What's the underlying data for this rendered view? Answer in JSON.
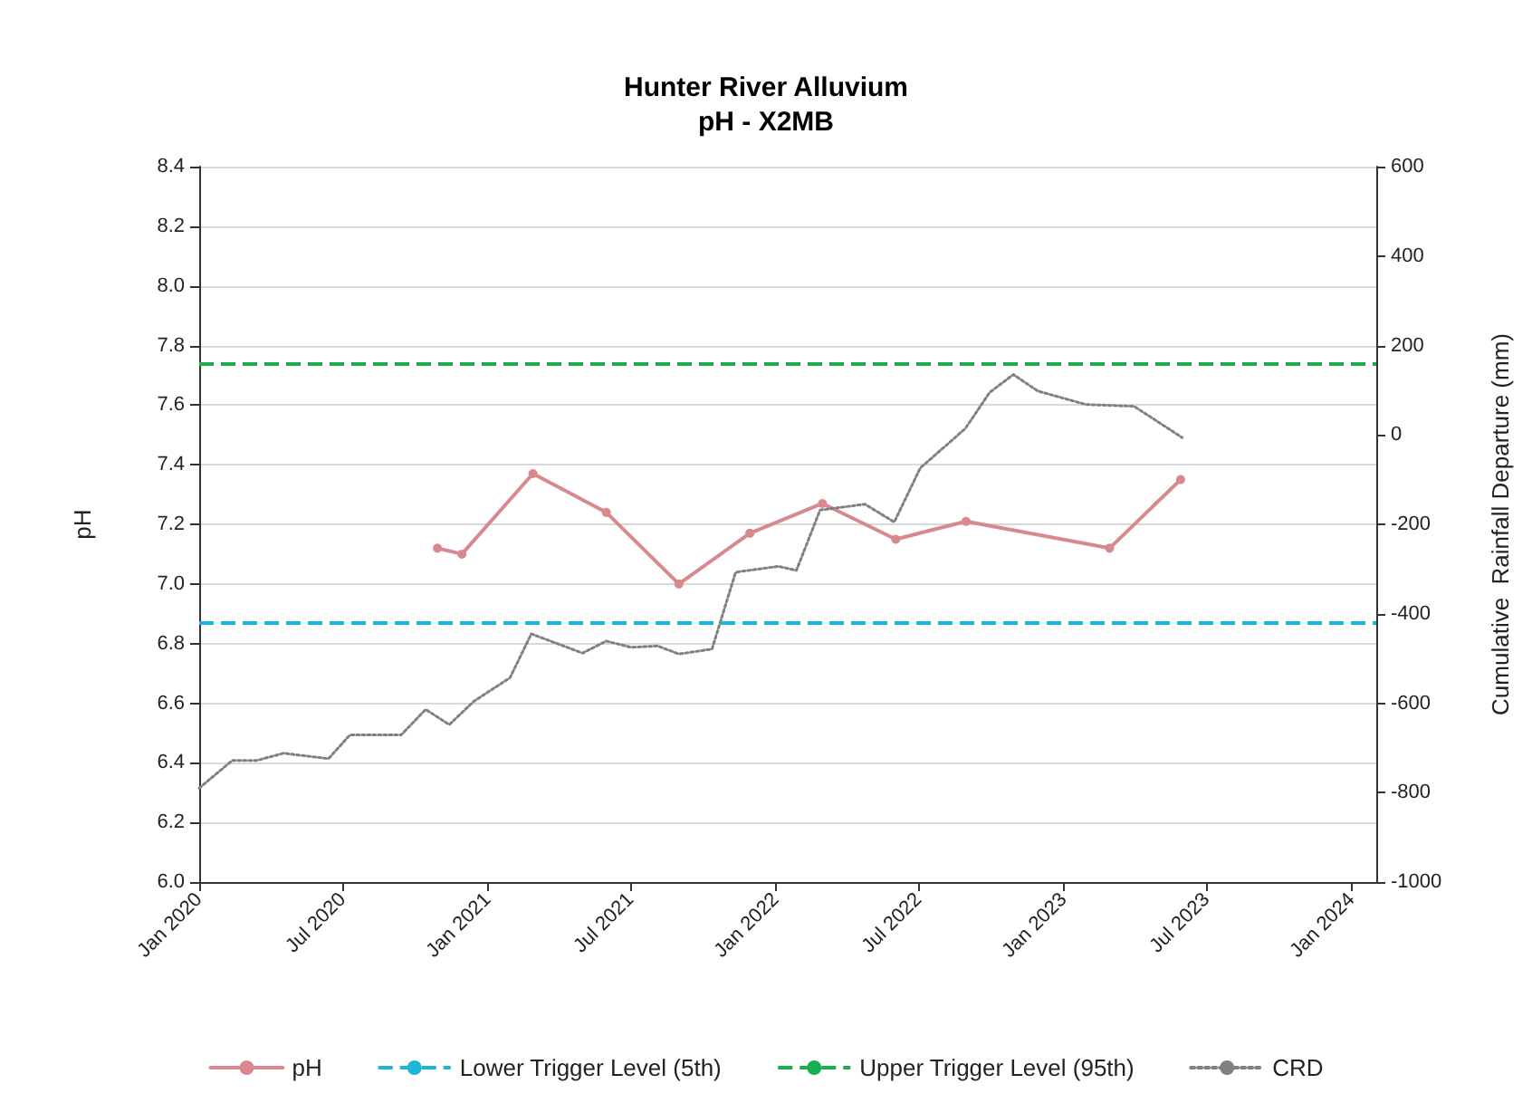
{
  "chart_data": {
    "type": "line",
    "title": "Hunter River Alluvium",
    "subtitle": "pH - X2MB",
    "ylabel": "pH",
    "y2label": "Cumulative  Rainfall Departure (mm)",
    "xlim": [
      "2020-01-01",
      "2024-02-01"
    ],
    "xticks": [
      {
        "value": "2020-01-01",
        "label": "Jan 2020"
      },
      {
        "value": "2020-07-01",
        "label": "Jul 2020"
      },
      {
        "value": "2021-01-01",
        "label": "Jan 2021"
      },
      {
        "value": "2021-07-01",
        "label": "Jul 2021"
      },
      {
        "value": "2022-01-01",
        "label": "Jan 2022"
      },
      {
        "value": "2022-07-01",
        "label": "Jul 2022"
      },
      {
        "value": "2023-01-01",
        "label": "Jan 2023"
      },
      {
        "value": "2023-07-01",
        "label": "Jul 2023"
      },
      {
        "value": "2024-01-01",
        "label": "Jan 2024"
      }
    ],
    "ylim": [
      6.0,
      8.4
    ],
    "yticks": [
      {
        "value": 6.0,
        "label": "6.0"
      },
      6.2,
      6.4,
      6.6,
      6.8,
      {
        "value": 7.0,
        "label": "7.0"
      },
      7.2,
      7.4,
      7.6,
      7.8,
      {
        "value": 8.0,
        "label": "8.0"
      },
      8.2,
      8.4
    ],
    "y2lim": [
      -1000,
      600
    ],
    "y2ticks": [
      -1000,
      -800,
      -600,
      -400,
      -200,
      0,
      200,
      400,
      600
    ],
    "grid": "y",
    "legend": "bottom",
    "series": [
      {
        "name": "pH",
        "color": "#d9898d",
        "marker": "circle",
        "line_style": "solid",
        "x": [
          "2020-10-29",
          "2020-11-29",
          "2021-02-27",
          "2021-05-31",
          "2021-08-31",
          "2021-11-29",
          "2022-03-01",
          "2022-06-02",
          "2022-08-30",
          "2023-02-28",
          "2023-05-29"
        ],
        "values": [
          7.12,
          7.1,
          7.37,
          7.24,
          7.0,
          7.17,
          7.27,
          7.15,
          7.21,
          7.12,
          7.35
        ]
      },
      {
        "name": "CRD",
        "color": "#808080",
        "marker": "none",
        "line_style": "dotted",
        "axis": "y2",
        "x": [
          "2020-01-01",
          "2020-02-12",
          "2020-03-14",
          "2020-04-17",
          "2020-06-13",
          "2020-07-10",
          "2020-09-13",
          "2020-10-14",
          "2020-11-13",
          "2020-12-14",
          "2021-01-29",
          "2021-02-25",
          "2021-05-01",
          "2021-05-31",
          "2021-07-01",
          "2021-08-04",
          "2021-08-31",
          "2021-10-12",
          "2021-11-11",
          "2022-01-04",
          "2022-01-27",
          "2022-02-26",
          "2022-04-24",
          "2022-05-31",
          "2022-07-03",
          "2022-08-29",
          "2022-09-29",
          "2022-10-29",
          "2022-11-29",
          "2023-01-29",
          "2023-03-31",
          "2023-05-31"
        ],
        "values": [
          -790,
          -728,
          -728,
          -712,
          -724,
          -671,
          -671,
          -614,
          -648,
          -596,
          -543,
          -445,
          -488,
          -461,
          -475,
          -472,
          -490,
          -479,
          -307,
          -294,
          -303,
          -168,
          -155,
          -195,
          -74,
          14,
          95,
          135,
          98,
          68,
          64,
          -6
        ]
      }
    ],
    "ref_lines": [
      {
        "axis": "y",
        "value": 6.87,
        "label": "Lower Trigger Level (5th)",
        "color": "#1fb4d8",
        "line_style": "dashed"
      },
      {
        "axis": "y",
        "value": 7.74,
        "label": "Upper Trigger Level (95th)",
        "color": "#16b050",
        "line_style": "dashed"
      }
    ]
  }
}
